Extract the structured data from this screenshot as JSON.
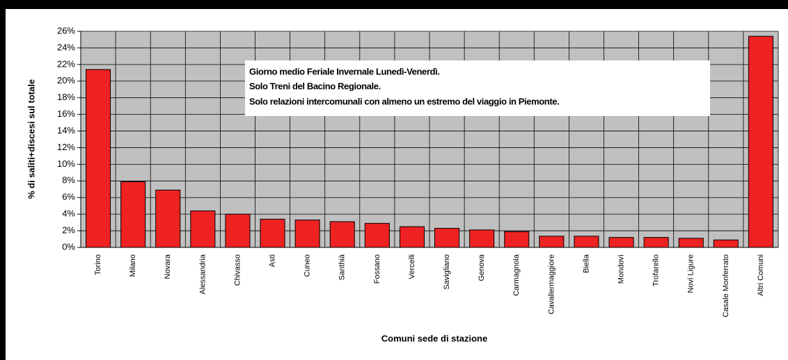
{
  "chart_data": {
    "type": "bar",
    "annotation": [
      "Giorno medio Feriale Invernale Lunedì-Venerdì.",
      "Solo Treni del Bacino Regionale.",
      "Solo relazioni intercomunali con almeno un estremo del viaggio in Piemonte."
    ],
    "y_label": "% di saliti+discesi sul totale",
    "x_label": "Comuni sede di stazione",
    "categories": [
      "Torino",
      "Milano",
      "Novara",
      "Alessandria",
      "Chivasso",
      "Asti",
      "Cuneo",
      "Santhià",
      "Fossano",
      "Vercelli",
      "Savigliano",
      "Genova",
      "Carmagnola",
      "Cavallermaggiore",
      "Biella",
      "Mondovì",
      "Trofarello",
      "Novi Ligure",
      "Casale Monferrato",
      "Altri Comuni"
    ],
    "values": [
      21.4,
      7.9,
      6.9,
      4.4,
      4.0,
      3.4,
      3.3,
      3.1,
      2.9,
      2.5,
      2.3,
      2.1,
      1.9,
      1.35,
      1.35,
      1.2,
      1.2,
      1.1,
      0.9,
      25.4
    ],
    "color": "#ee2222",
    "ylim": [
      0,
      26
    ],
    "yticks": [
      {
        "value": 0,
        "label": "0%"
      },
      {
        "value": 2,
        "label": "2%"
      },
      {
        "value": 4,
        "label": "4%"
      },
      {
        "value": 6,
        "label": "6%"
      },
      {
        "value": 8,
        "label": "8%"
      },
      {
        "value": 10,
        "label": "10%"
      },
      {
        "value": 12,
        "label": "12%"
      },
      {
        "value": 14,
        "label": "14%"
      },
      {
        "value": 16,
        "label": "16%"
      },
      {
        "value": 18,
        "label": "18%"
      },
      {
        "value": 20,
        "label": "20%"
      },
      {
        "value": 22,
        "label": "22%"
      },
      {
        "value": 24,
        "label": "24%"
      },
      {
        "value": 26,
        "label": "26%"
      }
    ],
    "grid": true
  }
}
